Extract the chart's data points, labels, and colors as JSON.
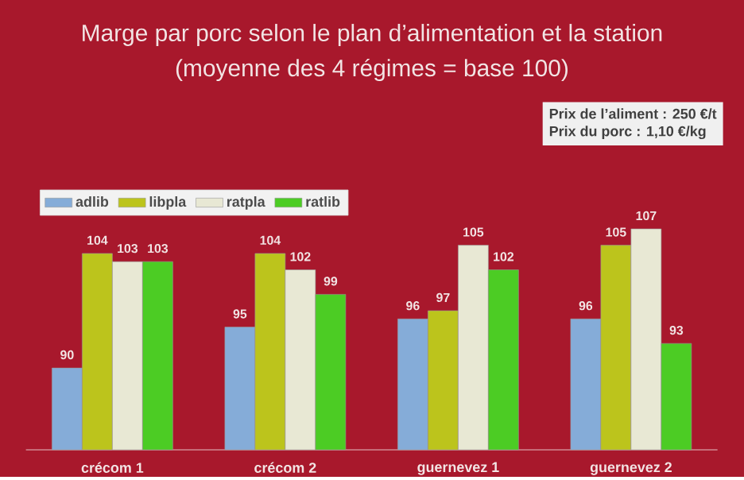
{
  "chart_data": {
    "type": "bar",
    "title": "Marge par porc selon le plan d’alimentation et la station",
    "subtitle": "(moyenne des 4 régimes = base 100)",
    "categories": [
      "crécom 1",
      "crécom 2",
      "guernevez 1",
      "guernevez 2"
    ],
    "series": [
      {
        "name": "adlib",
        "color": "#85acd8",
        "values": [
          90,
          95,
          96,
          96
        ]
      },
      {
        "name": "libpla",
        "color": "#bcc41c",
        "values": [
          104,
          104,
          97,
          105
        ]
      },
      {
        "name": "ratpla",
        "color": "#e8e8d4",
        "values": [
          103,
          102,
          105,
          107
        ]
      },
      {
        "name": "ratlib",
        "color": "#4ccc24",
        "values": [
          103,
          99,
          102,
          93
        ]
      }
    ],
    "ylim": [
      80,
      107
    ],
    "data_labels": true,
    "legend": "top left",
    "annotations": [
      "Prix de l’aliment : 250 €/t",
      "Prix du porc :     1,10 €/kg"
    ]
  }
}
